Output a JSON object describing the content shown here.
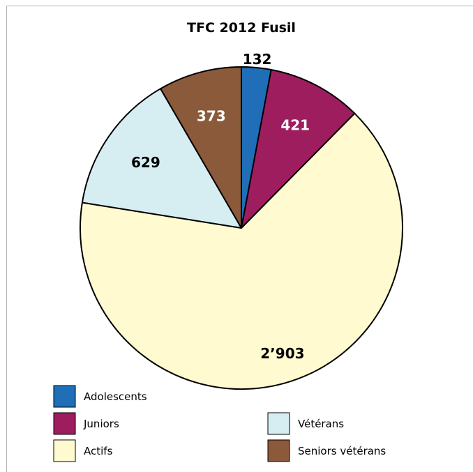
{
  "chart_data": {
    "type": "pie",
    "title": "TFC 2012 Fusil",
    "start_angle_deg": 0,
    "direction": "clockwise",
    "slices": [
      {
        "label": "Adolescents",
        "value": 132,
        "display": "132",
        "color": "#1f6eb7",
        "label_color": "#000000",
        "label_outside": true
      },
      {
        "label": "Juniors",
        "value": 421,
        "display": "421",
        "color": "#9e1d5e",
        "label_color": "#ffffff",
        "label_outside": false
      },
      {
        "label": "Actifs",
        "value": 2903,
        "display": "2’903",
        "color": "#fffacf",
        "label_color": "#000000",
        "label_outside": false
      },
      {
        "label": "Vétérans",
        "value": 629,
        "display": "629",
        "color": "#d6eef2",
        "label_color": "#000000",
        "label_outside": false
      },
      {
        "label": "Seniors vétérans",
        "value": 373,
        "display": "373",
        "color": "#8b5a3a",
        "label_color": "#ffffff",
        "label_outside": false
      }
    ],
    "legend": [
      {
        "label": "Adolescents",
        "color": "#1f6eb7"
      },
      {
        "label": "Juniors",
        "color": "#9e1d5e"
      },
      {
        "label": "Vétérans",
        "color": "#d6eef2"
      },
      {
        "label": "Actifs",
        "color": "#fffacf"
      },
      {
        "label": "Seniors vétérans",
        "color": "#8b5a3a"
      }
    ],
    "legend_placement": "bottom"
  }
}
